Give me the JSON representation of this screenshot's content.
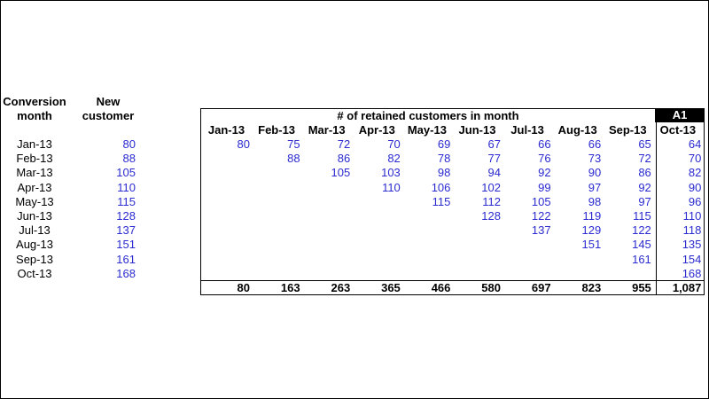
{
  "left": {
    "headers": [
      [
        "Conversion",
        "month"
      ],
      [
        "New",
        "customer"
      ]
    ],
    "rows": [
      [
        "Jan-13",
        80
      ],
      [
        "Feb-13",
        88
      ],
      [
        "Mar-13",
        105
      ],
      [
        "Apr-13",
        110
      ],
      [
        "May-13",
        115
      ],
      [
        "Jun-13",
        128
      ],
      [
        "Jul-13",
        137
      ],
      [
        "Aug-13",
        151
      ],
      [
        "Sep-13",
        161
      ],
      [
        "Oct-13",
        168
      ]
    ]
  },
  "retention": {
    "title": "# of retained customers in month",
    "badge": "A1",
    "columns": [
      "Jan-13",
      "Feb-13",
      "Mar-13",
      "Apr-13",
      "May-13",
      "Jun-13",
      "Jul-13",
      "Aug-13",
      "Sep-13",
      "Oct-13"
    ],
    "rows": [
      [
        80,
        75,
        72,
        70,
        69,
        67,
        66,
        66,
        65,
        64
      ],
      [
        null,
        88,
        86,
        82,
        78,
        77,
        76,
        73,
        72,
        70
      ],
      [
        null,
        null,
        105,
        103,
        98,
        94,
        92,
        90,
        86,
        82
      ],
      [
        null,
        null,
        null,
        110,
        106,
        102,
        99,
        97,
        92,
        90
      ],
      [
        null,
        null,
        null,
        null,
        115,
        112,
        105,
        98,
        97,
        96
      ],
      [
        null,
        null,
        null,
        null,
        null,
        128,
        122,
        119,
        115,
        110
      ],
      [
        null,
        null,
        null,
        null,
        null,
        null,
        137,
        129,
        122,
        118
      ],
      [
        null,
        null,
        null,
        null,
        null,
        null,
        null,
        151,
        145,
        135
      ],
      [
        null,
        null,
        null,
        null,
        null,
        null,
        null,
        null,
        161,
        154
      ],
      [
        null,
        null,
        null,
        null,
        null,
        null,
        null,
        null,
        null,
        168
      ]
    ],
    "totals": [
      80,
      163,
      263,
      365,
      466,
      580,
      697,
      823,
      955,
      {
        "value": 1087,
        "label": "1,087"
      }
    ]
  }
}
